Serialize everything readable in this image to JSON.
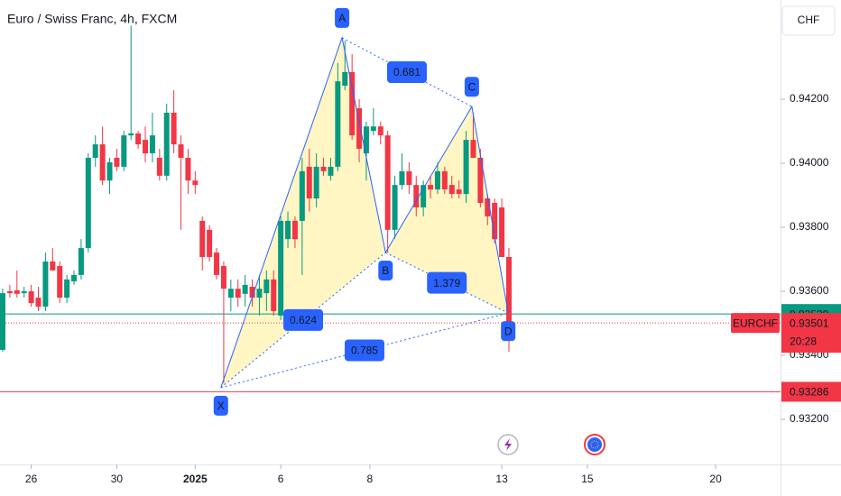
{
  "chart_data": {
    "type": "candlestick",
    "title": "Euro / Swiss Franc, 4h, FXCM",
    "currency": "CHF",
    "x": [
      -4,
      -3,
      -2,
      -1,
      0,
      1,
      2,
      3,
      4,
      5,
      6,
      7,
      8,
      9,
      10,
      11,
      12,
      13,
      14,
      15,
      16,
      17,
      18,
      19,
      20,
      21,
      22,
      23,
      24,
      25,
      26,
      27,
      28,
      29,
      30,
      31,
      32,
      33,
      34,
      35,
      36,
      37,
      38,
      39,
      40,
      41,
      42,
      43,
      44,
      45,
      46,
      47,
      48,
      49,
      50,
      51,
      52,
      53,
      54,
      55,
      56,
      57,
      58,
      59,
      60,
      61,
      62,
      63,
      64,
      65,
      66,
      67
    ],
    "open": [
      0.93417,
      0.936,
      0.93603,
      0.93594,
      0.936,
      0.9358,
      0.93552,
      0.93693,
      0.93679,
      0.9358,
      0.93631,
      0.93651,
      0.93735,
      0.94017,
      0.94059,
      0.93946,
      0.94017,
      0.93989,
      0.94087,
      0.94093,
      0.94073,
      0.94031,
      0.94017,
      0.93961,
      0.94158,
      0.94059,
      0.94017,
      0.93946,
      0.9382,
      0.93792,
      0.93721,
      0.93679,
      0.9358,
      0.93608,
      0.93592,
      0.93614,
      0.9358,
      0.93594,
      0.93637,
      0.93524,
      0.93763,
      0.9382,
      0.9382,
      0.93989,
      0.9389,
      0.93989,
      0.93961,
      0.93989,
      0.94242,
      0.94285,
      0.94172,
      0.94031,
      0.94101,
      0.94115,
      0.94087,
      0.93792,
      0.93932,
      0.93975,
      0.93932,
      0.93862,
      0.93932,
      0.93918,
      0.93975,
      0.93932,
      0.93918,
      0.93904,
      0.94073,
      0.94017,
      0.9389,
      0.93876,
      0.93862,
      0.93707
    ],
    "high": [
      0.93608,
      0.9362,
      0.93665,
      0.93614,
      0.9362,
      0.93614,
      0.93721,
      0.93735,
      0.93693,
      0.93651,
      0.93665,
      0.93763,
      0.94031,
      0.94087,
      0.94115,
      0.94017,
      0.94045,
      0.94101,
      0.9443,
      0.94101,
      0.94115,
      0.94158,
      0.94045,
      0.94186,
      0.94228,
      0.94087,
      0.94045,
      0.93975,
      0.93834,
      0.93806,
      0.93735,
      0.93693,
      0.93637,
      0.93637,
      0.93651,
      0.93637,
      0.93651,
      0.93665,
      0.93665,
      0.93834,
      0.93849,
      0.93834,
      0.94017,
      0.94045,
      0.94031,
      0.94017,
      0.94017,
      0.94313,
      0.94383,
      0.94341,
      0.942,
      0.9413,
      0.94172,
      0.9413,
      0.94101,
      0.93961,
      0.94031,
      0.94003,
      0.93961,
      0.93946,
      0.93961,
      0.94003,
      0.93989,
      0.93961,
      0.93946,
      0.94101,
      0.94158,
      0.94045,
      0.93904,
      0.9389,
      0.9389,
      0.93735
    ],
    "low": [
      0.93411,
      0.9358,
      0.9358,
      0.9358,
      0.93552,
      0.93538,
      0.93538,
      0.93665,
      0.93563,
      0.93563,
      0.9362,
      0.93637,
      0.93721,
      0.93989,
      0.93932,
      0.93904,
      0.93975,
      0.93975,
      0.94073,
      0.94045,
      0.94003,
      0.94003,
      0.93946,
      0.93946,
      0.94031,
      0.93792,
      0.93904,
      0.93904,
      0.93665,
      0.93693,
      0.93637,
      0.93313,
      0.93538,
      0.93552,
      0.93552,
      0.93552,
      0.93524,
      0.93538,
      0.93524,
      0.9351,
      0.93735,
      0.93735,
      0.93651,
      0.93849,
      0.93862,
      0.93961,
      0.93946,
      0.93975,
      0.94228,
      0.94073,
      0.94003,
      0.93946,
      0.94087,
      0.94059,
      0.93721,
      0.93764,
      0.93918,
      0.93904,
      0.93834,
      0.93834,
      0.9389,
      0.93904,
      0.93904,
      0.9389,
      0.9389,
      0.93876,
      0.94017,
      0.93862,
      0.93806,
      0.93749,
      0.93707,
      0.93411
    ],
    "close": [
      0.93594,
      0.93594,
      0.93592,
      0.936,
      0.93563,
      0.93552,
      0.93693,
      0.93665,
      0.9358,
      0.93637,
      0.93651,
      0.93735,
      0.94017,
      0.94059,
      0.93946,
      0.94003,
      0.93989,
      0.94087,
      0.94093,
      0.94059,
      0.94031,
      0.94087,
      0.93961,
      0.94158,
      0.94059,
      0.94017,
      0.93946,
      0.93932,
      0.93707,
      0.93707,
      0.93651,
      0.93608,
      0.93608,
      0.9358,
      0.9362,
      0.9358,
      0.93608,
      0.93637,
      0.93538,
      0.9382,
      0.9382,
      0.93763,
      0.93975,
      0.9389,
      0.93989,
      0.93975,
      0.93989,
      0.94256,
      0.94285,
      0.94087,
      0.94045,
      0.94115,
      0.94115,
      0.94087,
      0.93792,
      0.93932,
      0.93975,
      0.93932,
      0.93862,
      0.93932,
      0.93918,
      0.93975,
      0.93918,
      0.93904,
      0.93904,
      0.94073,
      0.94017,
      0.93876,
      0.93834,
      0.93763,
      0.93707,
      0.93501
    ],
    "up_color": "#089981",
    "down_color": "#f23645",
    "xlim": [
      -4.38,
      105.1
    ],
    "xticks": [
      {
        "value": 0,
        "label": "26"
      },
      {
        "value": 12,
        "label": "30"
      },
      {
        "value": 23,
        "label": "2025"
      },
      {
        "value": 35,
        "label": "6"
      },
      {
        "value": 47.5,
        "label": "8"
      },
      {
        "value": 66,
        "label": "13"
      },
      {
        "value": 78,
        "label": "15"
      },
      {
        "value": 96,
        "label": "20"
      }
    ],
    "ylim": [
      0.93059,
      0.9451
    ],
    "yticks": [
      {
        "value": 0.932,
        "label": "0.93200"
      },
      {
        "value": 0.934,
        "label": "0.93400"
      },
      {
        "value": 0.936,
        "label": "0.93600"
      },
      {
        "value": 0.938,
        "label": "0.93800"
      },
      {
        "value": 0.94,
        "label": "0.94000"
      },
      {
        "value": 0.942,
        "label": "0.94200"
      }
    ],
    "pattern": {
      "color": "#2962ff",
      "fill": "#fff3b0",
      "points": [
        {
          "label": "X",
          "x": 26.6,
          "y": 0.93299
        },
        {
          "label": "A",
          "x": 43.6,
          "y": 0.94392
        },
        {
          "label": "B",
          "x": 49.7,
          "y": 0.93721
        },
        {
          "label": "C",
          "x": 61.8,
          "y": 0.94177
        },
        {
          "label": "D",
          "x": 66.9,
          "y": 0.93532
        }
      ],
      "ratios": [
        0.624,
        0.681,
        1.379,
        0.785
      ]
    },
    "price_lines": [
      {
        "value": 0.93529,
        "color": "#089981",
        "style": "solid"
      },
      {
        "value": 0.93501,
        "color": "#f23645",
        "style": "dotted",
        "label": "EURCHF",
        "countdown": "20:28"
      },
      {
        "value": 0.93286,
        "color": "#f23645",
        "style": "solid"
      }
    ]
  }
}
